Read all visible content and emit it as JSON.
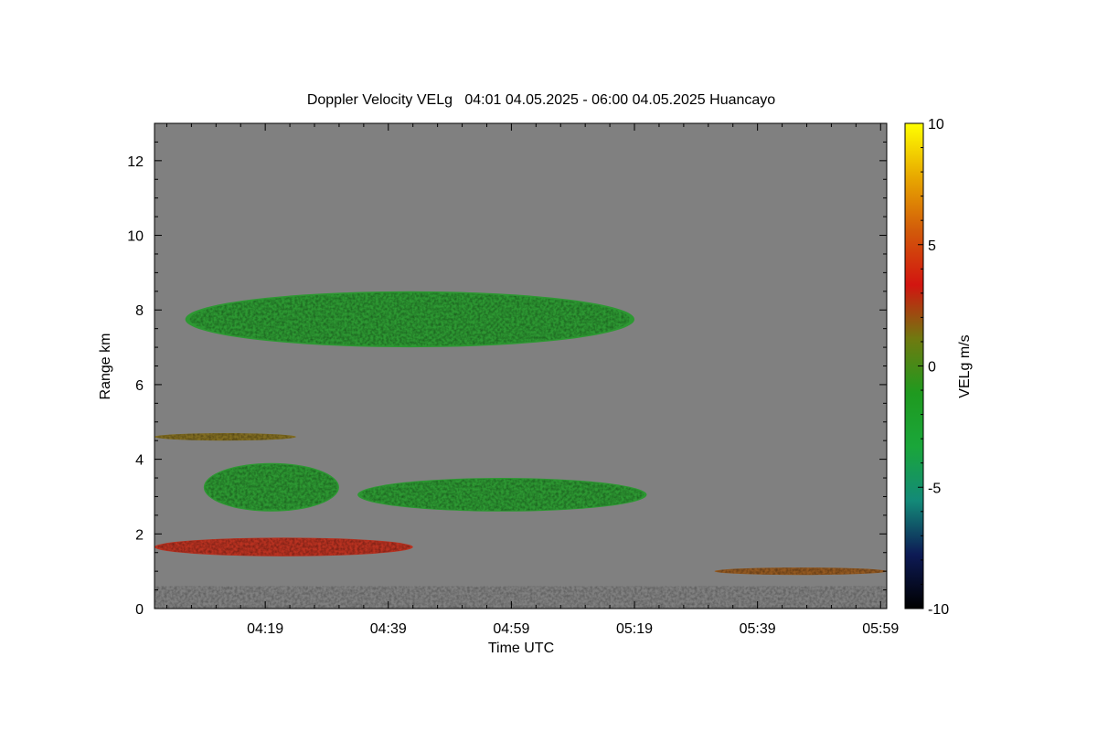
{
  "chart_data": {
    "type": "heatmap",
    "title": "Doppler Velocity VELg   04:01 04.05.2025 - 06:00 04.05.2025 Huancayo",
    "xlabel": "Time UTC",
    "ylabel": "Range km",
    "x_ticks": [
      "04:19",
      "04:39",
      "04:59",
      "05:19",
      "05:39",
      "05:59"
    ],
    "x_tick_minutes": [
      18,
      38,
      58,
      78,
      98,
      118
    ],
    "xlim_minutes": [
      0,
      119
    ],
    "y_ticks": [
      0,
      2,
      4,
      6,
      8,
      10,
      12
    ],
    "ylim": [
      0,
      13
    ],
    "colorbar": {
      "label": "VELg m/s",
      "ticks": [
        10,
        5,
        0,
        -5,
        -10
      ],
      "range": [
        -10,
        10
      ],
      "stops": [
        "#000000",
        "#0d1a55",
        "#138a78",
        "#1aa63a",
        "#1f9a1f",
        "#6f7a10",
        "#d21510",
        "#d25a0a",
        "#e8a800",
        "#ffff00"
      ]
    },
    "background_color": "#808080",
    "echo_layers": [
      {
        "name": "upper",
        "t_start": 5,
        "t_end": 78,
        "range_top": 8.5,
        "range_bottom": 7.0,
        "velocity": -1.5
      },
      {
        "name": "mid",
        "t_start": 8,
        "t_end": 30,
        "range_top": 3.9,
        "range_bottom": 2.6,
        "velocity": -1.5
      },
      {
        "name": "mid-right",
        "t_start": 33,
        "t_end": 80,
        "range_top": 3.5,
        "range_bottom": 2.6,
        "velocity": -1.5
      },
      {
        "name": "thin-4.6",
        "t_start": 0,
        "t_end": 23,
        "range_top": 4.7,
        "range_bottom": 4.5,
        "velocity": 1.5
      },
      {
        "name": "low-1.7",
        "t_start": 0,
        "t_end": 42,
        "range_top": 1.9,
        "range_bottom": 1.4,
        "velocity": 3.0
      },
      {
        "name": "surface",
        "t_start": 0,
        "t_end": 119,
        "range_top": 0.6,
        "range_bottom": 0.0,
        "velocity": 0.5
      },
      {
        "name": "late-1.0",
        "t_start": 91,
        "t_end": 119,
        "range_top": 1.1,
        "range_bottom": 0.9,
        "velocity": 2.0
      }
    ]
  }
}
